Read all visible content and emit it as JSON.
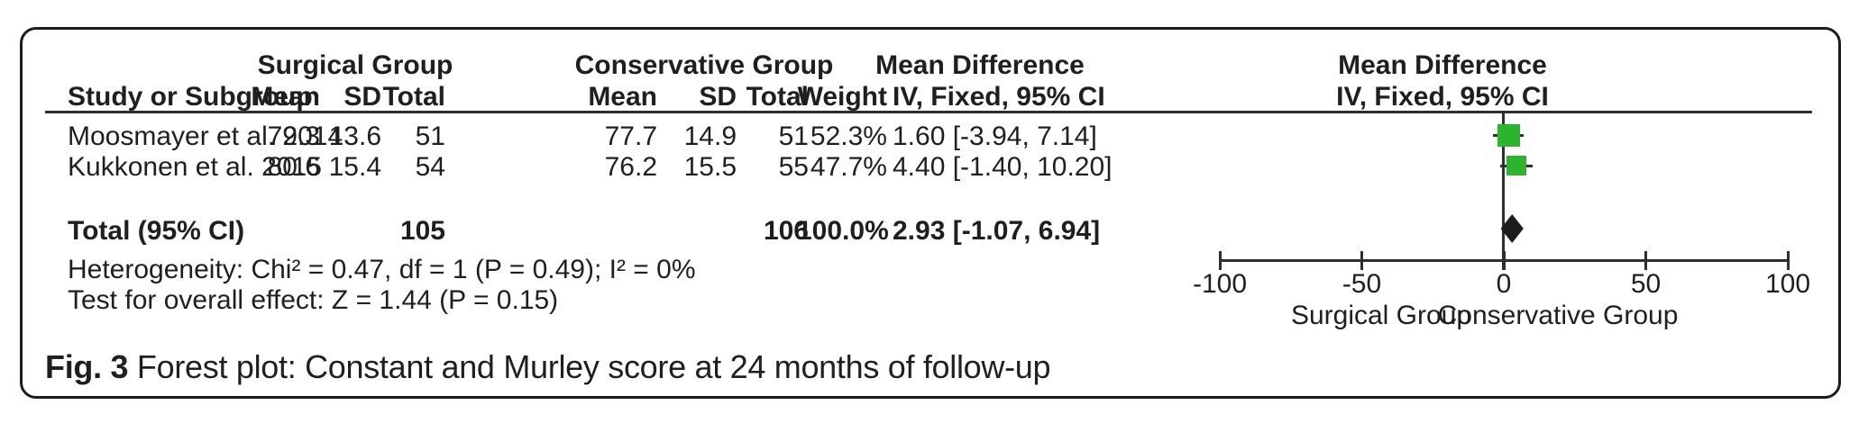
{
  "figure": {
    "caption_label": "Fig. 3",
    "caption_text": "Forest plot: Constant and Murley score at 24 months of follow-up"
  },
  "table": {
    "group_headers": {
      "surgical": "Surgical Group",
      "conservative": "Conservative Group",
      "mean_diff_table": "Mean Difference",
      "mean_diff_plot": "Mean Difference"
    },
    "col_headers": {
      "study": "Study or Subgroup",
      "mean1": "Mean",
      "sd1": "SD",
      "total1": "Total",
      "mean2": "Mean",
      "sd2": "SD",
      "total2": "Total",
      "weight": "Weight",
      "ci_table": "IV, Fixed, 95% CI",
      "ci_plot": "IV, Fixed, 95% CI"
    },
    "rows": [
      {
        "study": "Moosmayer et al. 2014",
        "s_mean": "79.3",
        "s_sd": "13.6",
        "s_total": "51",
        "c_mean": "77.7",
        "c_sd": "14.9",
        "c_total": "51",
        "weight": "52.3%",
        "ci": "1.60 [-3.94, 7.14]"
      },
      {
        "study": "Kukkonen et al. 2015",
        "s_mean": "80.6",
        "s_sd": "15.4",
        "s_total": "54",
        "c_mean": "76.2",
        "c_sd": "15.5",
        "c_total": "55",
        "weight": "47.7%",
        "ci": "4.40 [-1.40, 10.20]"
      }
    ],
    "total_row": {
      "label": "Total (95% CI)",
      "s_total": "105",
      "c_total": "106",
      "weight": "100.0%",
      "ci": "2.93 [-1.07, 6.94]"
    },
    "heterogeneity": "Heterogeneity: Chi² = 0.47, df = 1 (P = 0.49); I² = 0%",
    "overall_effect": "Test for overall effect: Z = 1.44 (P = 0.15)"
  },
  "chart_data": {
    "type": "forest",
    "effect_measure": "Mean Difference, IV, Fixed, 95% CI",
    "x_axis": {
      "range": [
        -100,
        100
      ],
      "ticks": [
        -100,
        -50,
        0,
        50,
        100
      ],
      "tick_labels": [
        "-100",
        "-50",
        "0",
        "50",
        "100"
      ],
      "label_left": "Surgical Group",
      "label_right": "Conservative Group"
    },
    "studies": [
      {
        "name": "Moosmayer et al. 2014",
        "mean_diff": 1.6,
        "ci_low": -3.94,
        "ci_high": 7.14,
        "weight_pct": 52.3
      },
      {
        "name": "Kukkonen et al. 2015",
        "mean_diff": 4.4,
        "ci_low": -1.4,
        "ci_high": 10.2,
        "weight_pct": 47.7
      }
    ],
    "total": {
      "label": "Total (95% CI)",
      "mean_diff": 2.93,
      "ci_low": -1.07,
      "ci_high": 6.94,
      "weight_pct": 100.0
    },
    "marker_color": "#2db32d",
    "diamond_color": "#1c1c1c"
  }
}
